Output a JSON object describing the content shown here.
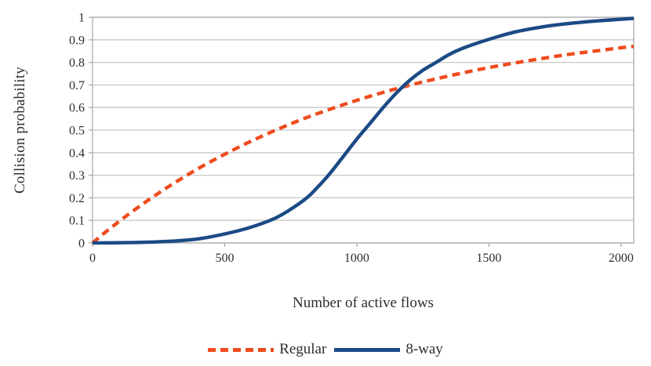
{
  "chart_data": {
    "type": "line",
    "title": "",
    "xlabel": "Number of active flows",
    "ylabel": "Collision probability",
    "xlim": [
      0,
      2048
    ],
    "ylim": [
      0,
      1
    ],
    "x_ticks": [
      0,
      500,
      1000,
      1500,
      2000
    ],
    "x_tick_labels": [
      "0",
      "500",
      "1000",
      "1500",
      "2000"
    ],
    "y_ticks": [
      0,
      0.1,
      0.2,
      0.3,
      0.4,
      0.5,
      0.6,
      0.7,
      0.8,
      0.9,
      1
    ],
    "y_tick_labels": [
      "0",
      "0.1",
      "0.2",
      "0.3",
      "0.4",
      "0.5",
      "0.6",
      "0.7",
      "0.8",
      "0.9",
      "1"
    ],
    "grid": "horizontal",
    "grid_color": "#c8c8c8",
    "axis_color": "#ababab",
    "text_color": "#2d2d2d",
    "legend_position": "bottom-center",
    "series": [
      {
        "name": "Regular",
        "color": "#ef4b1e",
        "style": "dashed",
        "x": [
          0,
          50,
          100,
          150,
          200,
          250,
          300,
          350,
          400,
          450,
          500,
          600,
          700,
          800,
          900,
          1000,
          1100,
          1200,
          1300,
          1400,
          1500,
          1600,
          1700,
          1800,
          1900,
          2000,
          2048
        ],
        "y": [
          0,
          0.049,
          0.095,
          0.139,
          0.181,
          0.221,
          0.259,
          0.295,
          0.33,
          0.362,
          0.393,
          0.451,
          0.503,
          0.551,
          0.593,
          0.632,
          0.667,
          0.699,
          0.727,
          0.753,
          0.777,
          0.798,
          0.817,
          0.835,
          0.85,
          0.865,
          0.871
        ]
      },
      {
        "name": "8-way",
        "color": "#1b4a85",
        "style": "solid",
        "x": [
          0,
          100,
          200,
          300,
          400,
          500,
          600,
          700,
          800,
          850,
          900,
          950,
          1000,
          1050,
          1100,
          1150,
          1200,
          1250,
          1300,
          1350,
          1400,
          1500,
          1600,
          1700,
          1800,
          1900,
          2000,
          2048
        ],
        "y": [
          0,
          0.001,
          0.003,
          0.008,
          0.018,
          0.04,
          0.07,
          0.115,
          0.19,
          0.245,
          0.31,
          0.385,
          0.46,
          0.53,
          0.6,
          0.665,
          0.72,
          0.765,
          0.8,
          0.835,
          0.862,
          0.902,
          0.935,
          0.957,
          0.972,
          0.983,
          0.991,
          0.995
        ]
      }
    ]
  }
}
